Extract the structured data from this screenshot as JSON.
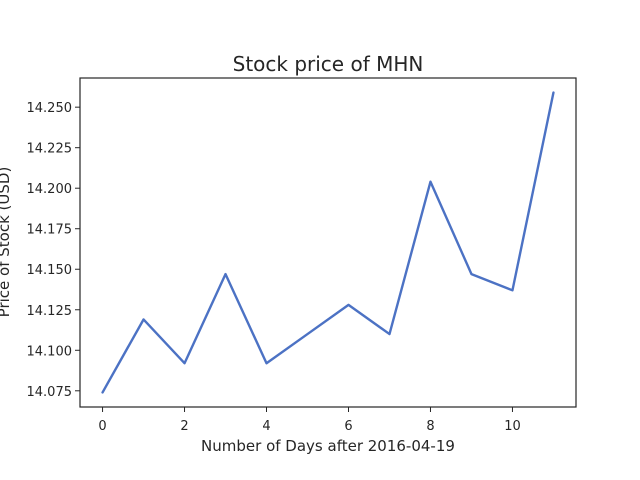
{
  "chart_data": {
    "type": "line",
    "title": "Stock price of MHN",
    "xlabel": "Number of Days after 2016-04-19",
    "ylabel": "Price of Stock (USD)",
    "x": [
      0,
      1,
      2,
      3,
      4,
      5,
      6,
      7,
      8,
      9,
      10,
      11
    ],
    "series": [
      {
        "values": [
          14.074,
          14.119,
          14.092,
          14.147,
          14.092,
          14.11,
          14.128,
          14.11,
          14.204,
          14.147,
          14.137,
          14.259
        ],
        "color": "#4c72c4"
      }
    ],
    "xlim": [
      -0.55,
      11.55
    ],
    "ylim": [
      14.065,
      14.268
    ],
    "xticks": [
      0,
      2,
      4,
      6,
      8,
      10
    ],
    "xtick_labels": [
      "0",
      "2",
      "4",
      "6",
      "8",
      "10"
    ],
    "yticks": [
      14.075,
      14.1,
      14.125,
      14.15,
      14.175,
      14.2,
      14.225,
      14.25
    ],
    "ytick_labels": [
      "14.075",
      "14.100",
      "14.125",
      "14.150",
      "14.175",
      "14.200",
      "14.225",
      "14.250"
    ],
    "grid": false,
    "legend": false
  }
}
